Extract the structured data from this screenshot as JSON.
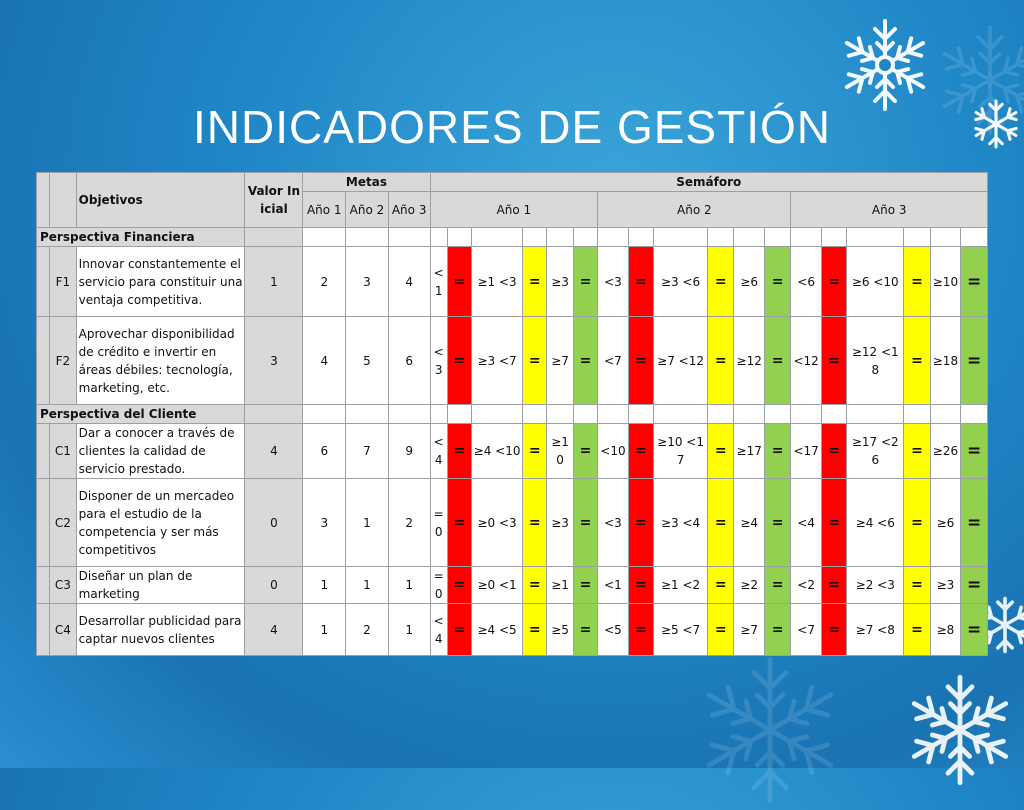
{
  "slide": {
    "title": "INDICADORES DE GESTIÓN"
  },
  "colors": {
    "red": "#ff0000",
    "yellow": "#ffff00",
    "green": "#92d050",
    "gray": "#d9d9d9",
    "background": "#1f86c6"
  },
  "icons": [
    "snowflake-icon"
  ],
  "table": {
    "headers": {
      "objetivos": "Objetivos",
      "valor_inicial": "Valor Inicial",
      "metas": "Metas",
      "semaforo": "Semáforo",
      "metas_years": [
        "Año 1",
        "Año 2",
        "Año 3"
      ],
      "semaforo_years": [
        "Año 1",
        "Año 2",
        "Año 3"
      ]
    },
    "sections": [
      {
        "title": "Perspectiva Financiera",
        "rows": [
          {
            "code": "F1",
            "objective": "Innovar constantemente el servicio para constituir una ventaja competitiva.",
            "initial": "1",
            "metas": [
              "2",
              "3",
              "4"
            ],
            "y1": [
              "<1",
              "=",
              "≥1 <3",
              "=",
              "≥3",
              "="
            ],
            "y2": [
              "<3",
              "=",
              "≥3 <6",
              "=",
              "≥6",
              "="
            ],
            "y3": [
              "<6",
              "=",
              "≥6 <10",
              "=",
              "≥10",
              "="
            ]
          },
          {
            "code": "F2",
            "objective": "Aprovechar disponibilidad de crédito e invertir en áreas débiles: tecnología, marketing, etc.",
            "initial": "3",
            "metas": [
              "4",
              "5",
              "6"
            ],
            "y1": [
              "<3",
              "=",
              "≥3 <7",
              "=",
              "≥7",
              "="
            ],
            "y2": [
              "<7",
              "=",
              "≥7 <12",
              "=",
              "≥12",
              "="
            ],
            "y3": [
              "<12",
              "=",
              "≥12 <18",
              "=",
              "≥18",
              "="
            ]
          }
        ]
      },
      {
        "title": "Perspectiva del Cliente",
        "rows": [
          {
            "code": "C1",
            "objective": "Dar a conocer a través de clientes la calidad de servicio prestado.",
            "initial": "4",
            "metas": [
              "6",
              "7",
              "9"
            ],
            "y1": [
              "<4",
              "=",
              "≥4 <10",
              "=",
              "≥10",
              "="
            ],
            "y2": [
              "<10",
              "=",
              "≥10 <17",
              "=",
              "≥17",
              "="
            ],
            "y3": [
              "<17",
              "=",
              "≥17 <26",
              "=",
              "≥26",
              "="
            ]
          },
          {
            "code": "C2",
            "objective": "Disponer de un mercadeo para el estudio de  la competencia y ser más competitivos",
            "initial": "0",
            "metas": [
              "3",
              "1",
              "2"
            ],
            "y1": [
              "=0",
              "=",
              "≥0 <3",
              "=",
              "≥3",
              "="
            ],
            "y2": [
              "<3",
              "=",
              "≥3 <4",
              "=",
              "≥4",
              "="
            ],
            "y3": [
              "<4",
              "=",
              "≥4 <6",
              "=",
              "≥6",
              "="
            ]
          },
          {
            "code": "C3",
            "objective": "Diseñar un plan de marketing",
            "initial": "0",
            "metas": [
              "1",
              "1",
              "1"
            ],
            "y1": [
              "=0",
              "=",
              "≥0 <1",
              "=",
              "≥1",
              "="
            ],
            "y2": [
              "<1",
              "=",
              "≥1 <2",
              "=",
              "≥2",
              "="
            ],
            "y3": [
              "<2",
              "=",
              "≥2 <3",
              "=",
              "≥3",
              "="
            ]
          },
          {
            "code": "C4",
            "objective": "Desarrollar publicidad para captar nuevos clientes",
            "initial": "4",
            "metas": [
              "1",
              "2",
              "1"
            ],
            "y1": [
              "<4",
              "=",
              "≥4 <5",
              "=",
              "≥5",
              "="
            ],
            "y2": [
              "<5",
              "=",
              "≥5 <7",
              "=",
              "≥7",
              "="
            ],
            "y3": [
              "<7",
              "=",
              "≥7 <8",
              "=",
              "≥8",
              "="
            ]
          }
        ]
      }
    ]
  }
}
